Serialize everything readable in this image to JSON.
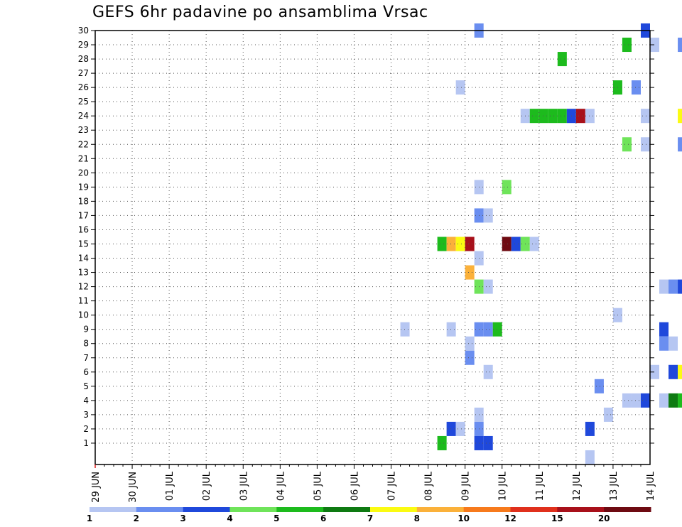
{
  "title": "GEFS 6hr padavine po ansamblima Vrsac",
  "chart_data": {
    "type": "heatmap",
    "title": "GEFS 6hr padavine po ansamblima Vrsac",
    "xlabel": "",
    "ylabel": "",
    "x_tick_labels": [
      "29 JUN",
      "30 JUN",
      "01 JUL",
      "02 JUL",
      "03 JUL",
      "04 JUL",
      "05 JUL",
      "06 JUL",
      "07 JUL",
      "08 JUL",
      "09 JUL",
      "10 JUL",
      "11 JUL",
      "12 JUL",
      "13 JUL",
      "14 JUL"
    ],
    "y_tick_labels": [
      "1",
      "2",
      "3",
      "4",
      "5",
      "6",
      "7",
      "8",
      "9",
      "10",
      "11",
      "12",
      "13",
      "14",
      "15",
      "16",
      "17",
      "18",
      "19",
      "20",
      "21",
      "22",
      "23",
      "24",
      "25",
      "26",
      "27",
      "28",
      "29",
      "30"
    ],
    "x_unit": "6h steps from 29 JUN 00Z",
    "grid": true,
    "legend_labels": [
      "1",
      "2",
      "3",
      "4",
      "5",
      "6",
      "7",
      "8",
      "10",
      "12",
      "15",
      "20"
    ],
    "legend_colors": [
      "#b6c6f2",
      "#6a8ef0",
      "#1f48db",
      "#6fe45a",
      "#1dbb1d",
      "#0e7a12",
      "#fbfb12",
      "#fbb13a",
      "#f77a1c",
      "#e0301c",
      "#a8101a",
      "#6e0a12"
    ],
    "cells": [
      [
        41.5,
        30,
        1
      ],
      [
        59.5,
        30,
        2
      ],
      [
        99.5,
        30,
        2
      ],
      [
        101.5,
        30,
        0
      ],
      [
        57.5,
        29,
        4
      ],
      [
        60.5,
        29,
        0
      ],
      [
        63.5,
        29,
        1
      ],
      [
        64.5,
        29,
        1
      ],
      [
        67.5,
        29,
        2
      ],
      [
        68.5,
        29,
        1
      ],
      [
        50.5,
        28,
        4
      ],
      [
        39.5,
        26,
        0
      ],
      [
        56.5,
        26,
        4
      ],
      [
        58.5,
        26,
        1
      ],
      [
        46.5,
        24,
        0
      ],
      [
        47.5,
        24,
        4
      ],
      [
        48.5,
        24,
        4
      ],
      [
        49.5,
        24,
        4
      ],
      [
        50.5,
        24,
        4
      ],
      [
        51.5,
        24,
        2
      ],
      [
        52.5,
        24,
        10
      ],
      [
        53.5,
        24,
        0
      ],
      [
        59.5,
        24,
        0
      ],
      [
        63.5,
        24,
        6
      ],
      [
        64.5,
        24,
        3
      ],
      [
        65.5,
        24,
        3
      ],
      [
        66.5,
        24,
        0
      ],
      [
        67.5,
        24,
        2
      ],
      [
        68.5,
        24,
        1
      ],
      [
        69.5,
        24,
        0
      ],
      [
        71.5,
        24,
        1
      ],
      [
        72.5,
        24,
        0
      ],
      [
        73.5,
        24,
        0
      ],
      [
        69.5,
        23,
        0
      ],
      [
        70.5,
        23,
        0
      ],
      [
        71.5,
        23,
        2
      ],
      [
        69.5,
        22,
        0
      ],
      [
        70.5,
        22,
        0
      ],
      [
        57.5,
        22,
        3
      ],
      [
        59.5,
        22,
        0
      ],
      [
        63.5,
        22,
        1
      ],
      [
        69.5,
        21,
        0
      ],
      [
        72.5,
        21,
        0
      ],
      [
        73.5,
        21,
        2
      ],
      [
        64.5,
        20,
        0
      ],
      [
        41.5,
        19,
        0
      ],
      [
        44.5,
        19,
        3
      ],
      [
        41.5,
        17,
        1
      ],
      [
        42.5,
        17,
        0
      ],
      [
        68.5,
        17,
        0
      ],
      [
        37.5,
        15,
        4
      ],
      [
        38.5,
        15,
        7
      ],
      [
        39.5,
        15,
        6
      ],
      [
        40.5,
        15,
        10
      ],
      [
        44.5,
        15,
        11
      ],
      [
        45.5,
        15,
        2
      ],
      [
        46.5,
        15,
        3
      ],
      [
        47.5,
        15,
        0
      ],
      [
        69.5,
        15,
        0
      ],
      [
        72.5,
        15,
        2
      ],
      [
        73.5,
        15,
        0
      ],
      [
        41.5,
        14,
        0
      ],
      [
        64.5,
        14,
        0
      ],
      [
        65.5,
        14,
        2
      ],
      [
        40.5,
        13,
        7
      ],
      [
        70.5,
        13,
        5
      ],
      [
        71.5,
        13,
        9
      ],
      [
        72.5,
        13,
        0
      ],
      [
        41.5,
        12,
        3
      ],
      [
        42.5,
        12,
        0
      ],
      [
        61.5,
        12,
        0
      ],
      [
        62.5,
        12,
        1
      ],
      [
        63.5,
        12,
        2
      ],
      [
        64.5,
        12,
        5
      ],
      [
        65.5,
        12,
        4
      ],
      [
        68.5,
        12,
        3
      ],
      [
        69.5,
        12,
        0
      ],
      [
        77.5,
        11,
        0
      ],
      [
        78.5,
        11,
        1
      ],
      [
        56.5,
        10,
        0
      ],
      [
        33.5,
        9,
        0
      ],
      [
        38.5,
        9,
        0
      ],
      [
        41.5,
        9,
        1
      ],
      [
        42.5,
        9,
        1
      ],
      [
        43.5,
        9,
        4
      ],
      [
        61.5,
        9,
        2
      ],
      [
        40.5,
        8,
        0
      ],
      [
        61.5,
        8,
        1
      ],
      [
        62.5,
        8,
        0
      ],
      [
        64.5,
        8,
        0
      ],
      [
        40.5,
        7,
        1
      ],
      [
        42.5,
        6,
        0
      ],
      [
        60.5,
        6,
        0
      ],
      [
        62.5,
        6,
        2
      ],
      [
        63.5,
        6,
        6
      ],
      [
        68.5,
        6,
        0
      ],
      [
        69.5,
        6,
        1
      ],
      [
        70.5,
        6,
        3
      ],
      [
        54.5,
        5,
        1
      ],
      [
        66.5,
        5,
        1
      ],
      [
        57.5,
        4,
        0
      ],
      [
        58.5,
        4,
        0
      ],
      [
        59.5,
        4,
        2
      ],
      [
        61.5,
        4,
        0
      ],
      [
        62.5,
        4,
        5
      ],
      [
        63.5,
        4,
        4
      ],
      [
        64.5,
        4,
        2
      ],
      [
        68.5,
        4,
        0
      ],
      [
        41.5,
        3,
        0
      ],
      [
        55.5,
        3,
        0
      ],
      [
        38.5,
        2,
        2
      ],
      [
        39.5,
        2,
        0
      ],
      [
        41.5,
        2,
        1
      ],
      [
        53.5,
        2,
        2
      ],
      [
        68.5,
        2,
        2
      ],
      [
        69.5,
        2,
        0
      ],
      [
        37.5,
        1,
        4
      ],
      [
        41.5,
        1,
        2
      ],
      [
        42.5,
        1,
        2
      ],
      [
        75.5,
        1,
        7
      ],
      [
        76.5,
        1,
        2
      ],
      [
        77.5,
        1,
        0
      ],
      [
        78.5,
        1,
        0
      ],
      [
        53.5,
        0,
        0
      ]
    ]
  }
}
